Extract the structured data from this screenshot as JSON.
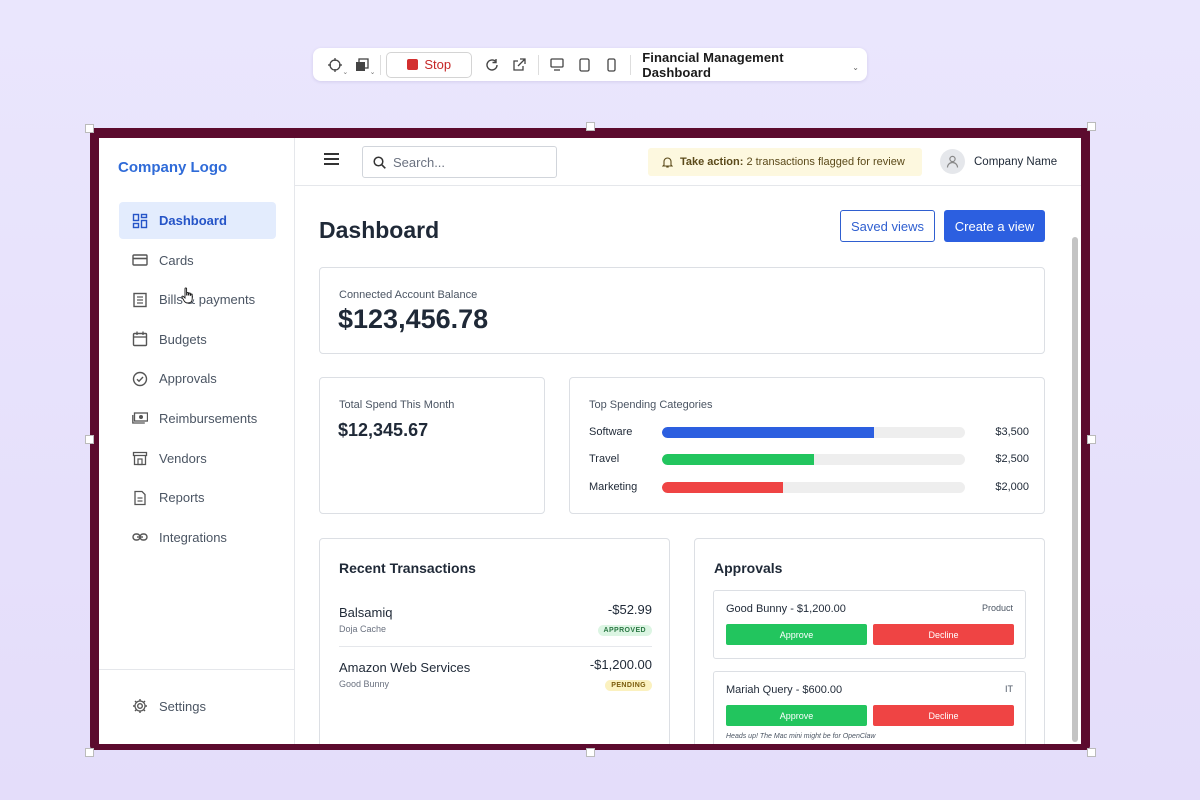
{
  "toolbar": {
    "stop_label": "Stop",
    "title": "Financial Management Dashboard",
    "icons": [
      "crosshair-icon",
      "layers-icon",
      "refresh-icon",
      "external-link-icon",
      "desktop-icon",
      "tablet-icon",
      "phone-icon"
    ]
  },
  "sidebar": {
    "logo": "Company Logo",
    "items": [
      {
        "label": "Dashboard",
        "icon": "dashboard-icon",
        "active": true
      },
      {
        "label": "Cards",
        "icon": "card-icon"
      },
      {
        "label": "Bills & payments",
        "icon": "bill-icon"
      },
      {
        "label": "Budgets",
        "icon": "calendar-icon"
      },
      {
        "label": "Approvals",
        "icon": "check-circle-icon"
      },
      {
        "label": "Reimbursements",
        "icon": "cash-icon"
      },
      {
        "label": "Vendors",
        "icon": "store-icon"
      },
      {
        "label": "Reports",
        "icon": "report-icon"
      },
      {
        "label": "Integrations",
        "icon": "link-icon"
      }
    ],
    "settings": "Settings"
  },
  "topbar": {
    "search_placeholder": "Search...",
    "alert_strong": "Take action:",
    "alert_text": "2 transactions flagged for review",
    "company_name": "Company Name"
  },
  "page": {
    "title": "Dashboard",
    "saved_views": "Saved views",
    "create_view": "Create a view"
  },
  "balance": {
    "label": "Connected Account Balance",
    "value": "$123,456.78"
  },
  "spend": {
    "label": "Total Spend This Month",
    "value": "$12,345.67"
  },
  "categories": {
    "label": "Top Spending Categories",
    "items": [
      {
        "name": "Software",
        "amount": "$3,500",
        "fraction": 0.7,
        "color": "#2c5fe0"
      },
      {
        "name": "Travel",
        "amount": "$2,500",
        "fraction": 0.5,
        "color": "#22c55e"
      },
      {
        "name": "Marketing",
        "amount": "$2,000",
        "fraction": 0.4,
        "color": "#ef4444"
      }
    ]
  },
  "transactions": {
    "title": "Recent Transactions",
    "items": [
      {
        "name": "Balsamiq",
        "sub": "Doja Cache",
        "amount": "-$52.99",
        "status": "APPROVED"
      },
      {
        "name": "Amazon Web Services",
        "sub": "Good Bunny",
        "amount": "-$1,200.00",
        "status": "PENDING"
      }
    ]
  },
  "approvals": {
    "title": "Approvals",
    "approve_label": "Approve",
    "decline_label": "Decline",
    "items": [
      {
        "title": "Good Bunny - $1,200.00",
        "tag": "Product"
      },
      {
        "title": "Mariah Query - $600.00",
        "tag": "IT",
        "note": "Heads up! The Mac mini might be for OpenClaw"
      }
    ]
  }
}
